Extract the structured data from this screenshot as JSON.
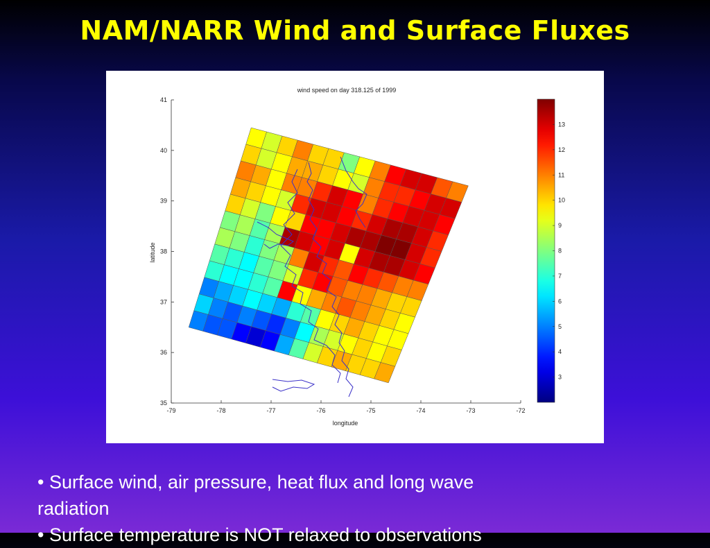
{
  "slide": {
    "title": "NAM/NARR Wind and Surface Fluxes",
    "bullets": [
      "•  Surface wind, air pressure, heat flux and long wave",
      "radiation",
      "•  Surface temperature is NOT relaxed to observations"
    ]
  },
  "chart_data": {
    "type": "heatmap",
    "title": "wind speed on day 318.125 of 1999",
    "xlabel": "longitude",
    "ylabel": "latitude",
    "xlim": [
      -79,
      -72
    ],
    "ylim": [
      35,
      41
    ],
    "xticks": [
      -79,
      -78,
      -77,
      -76,
      -75,
      -74,
      -73,
      -72
    ],
    "yticks": [
      35,
      36,
      37,
      38,
      39,
      40,
      41
    ],
    "colorbar": {
      "range": [
        2,
        14
      ],
      "ticks": [
        3,
        4,
        5,
        6,
        7,
        8,
        9,
        10,
        11,
        12,
        13
      ],
      "colormap": "jet"
    },
    "grid_corners": {
      "top_left": [
        -77.4,
        40.45
      ],
      "top_right": [
        -73.05,
        39.3
      ],
      "bottom_left": [
        -78.65,
        36.5
      ],
      "bottom_right": [
        -74.65,
        35.4
      ]
    },
    "grid_note": "rows from north to south, columns from west to east; values are wind speed in m/s",
    "values": [
      [
        9.5,
        9.0,
        10.0,
        11.0,
        10.0,
        10.0,
        8.0,
        9.5,
        11.0,
        12.5,
        13.0,
        13.0,
        11.5,
        11.0
      ],
      [
        10.0,
        9.0,
        9.5,
        10.5,
        10.5,
        10.0,
        9.5,
        9.0,
        11.0,
        12.0,
        12.0,
        12.5,
        13.0,
        13.0
      ],
      [
        11.0,
        10.5,
        9.5,
        11.0,
        11.0,
        12.0,
        13.0,
        12.5,
        11.0,
        12.0,
        12.5,
        13.0,
        13.0,
        12.5
      ],
      [
        10.5,
        10.0,
        9.5,
        9.0,
        12.0,
        13.0,
        13.0,
        12.5,
        12.0,
        13.0,
        13.5,
        13.5,
        13.0,
        12.0
      ],
      [
        10.0,
        9.0,
        8.0,
        9.5,
        10.0,
        12.5,
        12.5,
        13.0,
        13.5,
        13.5,
        14.0,
        14.0,
        13.0,
        12.0
      ],
      [
        8.0,
        8.5,
        7.5,
        8.5,
        13.5,
        13.0,
        12.5,
        13.0,
        9.5,
        13.0,
        13.5,
        13.5,
        13.0,
        12.5
      ],
      [
        8.5,
        8.0,
        7.0,
        8.0,
        8.5,
        11.0,
        13.0,
        12.0,
        11.5,
        12.5,
        12.0,
        11.5,
        11.0,
        11.0
      ],
      [
        7.5,
        7.0,
        6.5,
        7.5,
        8.0,
        9.0,
        12.0,
        12.5,
        11.5,
        11.0,
        11.0,
        10.5,
        10.0,
        10.0
      ],
      [
        7.0,
        6.5,
        6.5,
        7.0,
        7.5,
        12.5,
        9.5,
        10.5,
        11.0,
        11.5,
        11.0,
        10.5,
        10.0,
        9.5
      ],
      [
        5.0,
        5.5,
        6.0,
        6.5,
        6.0,
        5.5,
        7.0,
        7.5,
        9.5,
        10.0,
        10.5,
        10.0,
        9.5,
        9.5
      ],
      [
        6.0,
        5.0,
        4.5,
        5.0,
        4.5,
        4.0,
        5.0,
        6.5,
        8.5,
        9.0,
        9.5,
        10.0,
        9.5,
        10.0
      ],
      [
        5.0,
        4.5,
        4.5,
        3.5,
        3.0,
        3.5,
        5.5,
        7.5,
        9.0,
        10.0,
        10.5,
        10.0,
        10.0,
        10.5
      ]
    ]
  }
}
